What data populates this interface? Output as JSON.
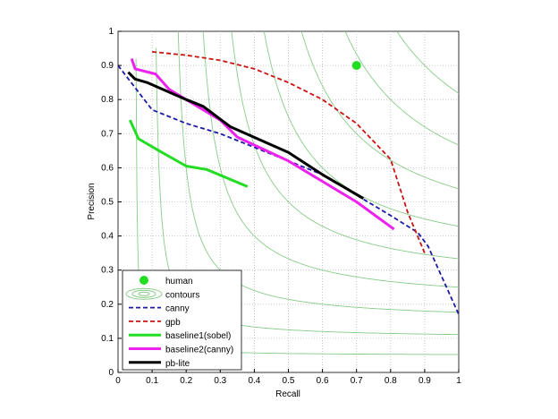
{
  "chart_data": {
    "type": "line",
    "title": "",
    "xlabel": "Recall",
    "ylabel": "Precision",
    "xlim": [
      0,
      1
    ],
    "ylim": [
      0,
      1
    ],
    "xticks": [
      "0",
      "0.1",
      "0.2",
      "0.3",
      "0.4",
      "0.5",
      "0.6",
      "0.7",
      "0.8",
      "0.9",
      "1"
    ],
    "yticks": [
      "0",
      "0.1",
      "0.2",
      "0.3",
      "0.4",
      "0.5",
      "0.6",
      "0.7",
      "0.8",
      "0.9",
      "1"
    ],
    "grid": true,
    "legend_position": "bottom-left",
    "contour_levels": [
      0.1,
      0.2,
      0.3,
      0.4,
      0.5,
      0.6,
      0.7,
      0.8,
      0.9
    ],
    "human": {
      "name": "human",
      "x": 0.7,
      "y": 0.9,
      "color": "#22dd22"
    },
    "contours_label": "contours",
    "contour_color": "#88cc88",
    "series": [
      {
        "name": "canny",
        "color": "#1a1aa6",
        "dashed": true,
        "width": 1.8,
        "x": [
          0,
          0.1,
          0.2,
          0.3,
          0.4,
          0.5,
          0.6,
          0.7,
          0.8,
          0.88,
          0.91,
          1.0
        ],
        "y": [
          0.9,
          0.77,
          0.73,
          0.7,
          0.66,
          0.62,
          0.58,
          0.52,
          0.46,
          0.41,
          0.37,
          0.17
        ]
      },
      {
        "name": "gpb",
        "color": "#cc1111",
        "dashed": true,
        "width": 1.8,
        "x": [
          0.1,
          0.2,
          0.3,
          0.4,
          0.5,
          0.6,
          0.7,
          0.8,
          0.85,
          0.9
        ],
        "y": [
          0.94,
          0.93,
          0.915,
          0.89,
          0.85,
          0.8,
          0.73,
          0.625,
          0.47,
          0.35
        ]
      },
      {
        "name": "baseline1(sobel)",
        "color": "#22dd22",
        "dashed": false,
        "width": 3,
        "x": [
          0.035,
          0.06,
          0.12,
          0.2,
          0.26,
          0.38
        ],
        "y": [
          0.74,
          0.685,
          0.65,
          0.605,
          0.595,
          0.545
        ]
      },
      {
        "name": "baseline2(canny)",
        "color": "#ee22ee",
        "dashed": false,
        "width": 3,
        "x": [
          0.04,
          0.05,
          0.11,
          0.15,
          0.2,
          0.3,
          0.35,
          0.5,
          0.6,
          0.7,
          0.81
        ],
        "y": [
          0.92,
          0.89,
          0.875,
          0.83,
          0.8,
          0.74,
          0.69,
          0.62,
          0.56,
          0.5,
          0.42
        ]
      },
      {
        "name": "pb-lite",
        "color": "#000000",
        "dashed": false,
        "width": 3,
        "x": [
          0.03,
          0.05,
          0.085,
          0.2,
          0.25,
          0.33,
          0.5,
          0.6,
          0.72
        ],
        "y": [
          0.88,
          0.86,
          0.85,
          0.8,
          0.78,
          0.72,
          0.645,
          0.58,
          0.51
        ]
      }
    ]
  }
}
